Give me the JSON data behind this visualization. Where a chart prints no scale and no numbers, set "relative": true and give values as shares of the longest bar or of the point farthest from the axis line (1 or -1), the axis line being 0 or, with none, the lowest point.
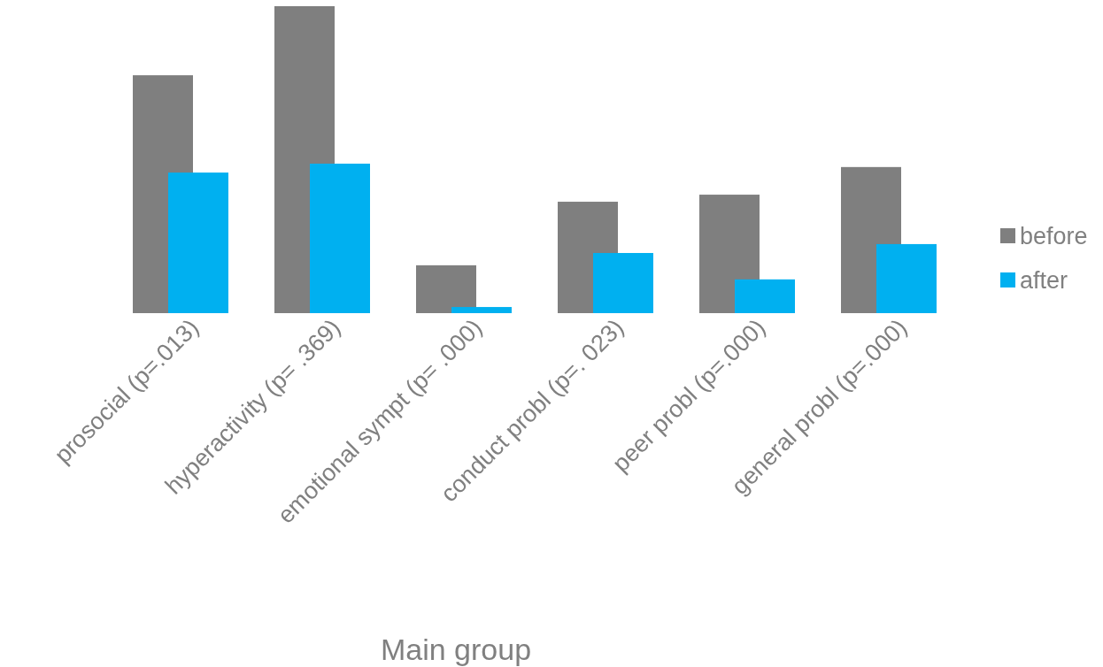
{
  "chart_data": {
    "type": "bar",
    "relative": true,
    "xlabel": "Main group",
    "categories": [
      "prosocial  (p=.013)",
      "hyperactivity (p= .369)",
      "emotional sympt (p= .000)",
      "conduct probl (p=. 023)",
      "peer probl (p=.000)",
      "general probl (p=.000)"
    ],
    "series": [
      {
        "name": "before",
        "color": "#7f7f7f",
        "values": [
          0.775,
          1,
          0.156,
          0.363,
          0.386,
          0.476
        ]
      },
      {
        "name": "after",
        "color": "#00b0f0",
        "values": [
          0.458,
          0.487,
          0.02,
          0.196,
          0.11,
          0.225
        ]
      }
    ],
    "legend": "right"
  }
}
